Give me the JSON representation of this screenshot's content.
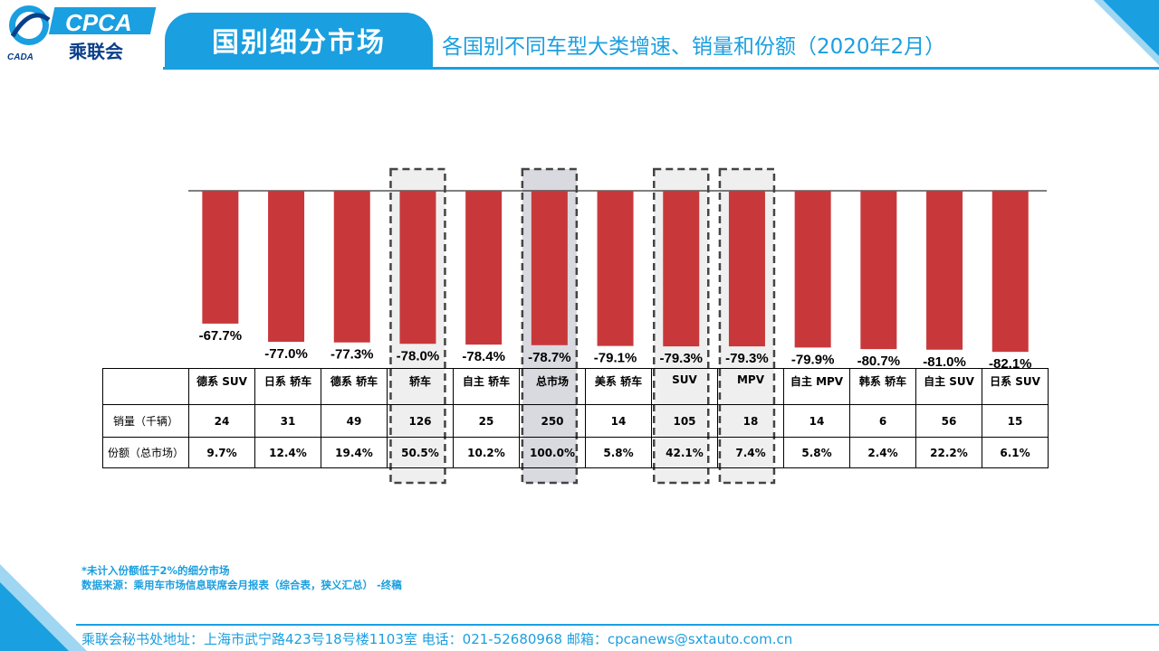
{
  "header": {
    "logo_text": "CPCA",
    "logo_cn": "乘联会",
    "logo_small": "CADA",
    "section_tab": "国别细分市场",
    "subtitle": "各国别不同车型大类增速、销量和份额（2020年2月）"
  },
  "colors": {
    "accent": "#1a9fe0",
    "bar": "#c8383b",
    "highlight_dark": "#d9d9e0",
    "highlight_light": "#efefef"
  },
  "chart_data": {
    "type": "bar",
    "categories": [
      "德系 SUV",
      "日系 轿车",
      "德系 轿车",
      "轿车",
      "自主 轿车",
      "总市场",
      "美系 轿车",
      "SUV",
      "MPV",
      "自主 MPV",
      "韩系 轿车",
      "自主 SUV",
      "日系 SUV"
    ],
    "series": [
      {
        "values": [
          -67.7,
          -77.0,
          -77.3,
          -78.0,
          -78.4,
          -78.7,
          -79.1,
          -79.3,
          -79.3,
          -79.9,
          -80.7,
          -81.0,
          -82.1
        ]
      }
    ],
    "value_labels": [
      "-67.7%",
      "-77.0%",
      "-77.3%",
      "-78.0%",
      "-78.4%",
      "-78.7%",
      "-79.1%",
      "-79.3%",
      "-79.3%",
      "-79.9%",
      "-80.7%",
      "-81.0%",
      "-82.1%"
    ],
    "ylim": [
      -100,
      0
    ],
    "highlighted": [
      "轿车",
      "总市场",
      "SUV",
      "MPV"
    ],
    "highlight_strong": [
      "总市场"
    ]
  },
  "table": {
    "rows": [
      {
        "label": "销量（千辆）",
        "values": [
          "24",
          "31",
          "49",
          "126",
          "25",
          "250",
          "14",
          "105",
          "18",
          "14",
          "6",
          "56",
          "15"
        ]
      },
      {
        "label": "份额（总市场）",
        "values": [
          "9.7%",
          "12.4%",
          "19.4%",
          "50.5%",
          "10.2%",
          "100.0%",
          "5.8%",
          "42.1%",
          "7.4%",
          "5.8%",
          "2.4%",
          "22.2%",
          "6.1%"
        ]
      }
    ]
  },
  "footnote": {
    "line1": "*未计入份额低于2%的细分市场",
    "line2": "数据来源：乘用车市场信息联席会月报表（综合表，狭义汇总） -终稿"
  },
  "footer": {
    "text": "乘联会秘书处地址：上海市武宁路423号18号楼1103室  电话：021-52680968    邮箱：cpcanews@sxtauto.com.cn"
  }
}
